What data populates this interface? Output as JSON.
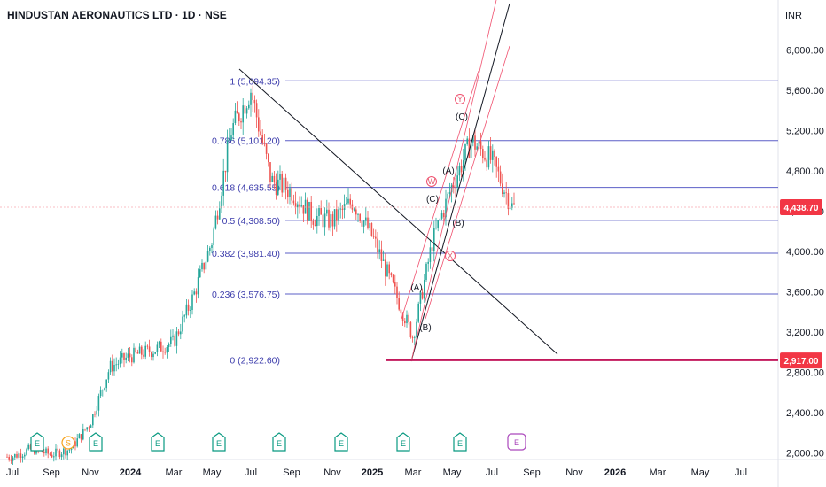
{
  "header": {
    "title": "HINDUSTAN AERONAUTICS LTD · 1D · NSE",
    "currency": "INR"
  },
  "chart_data": {
    "type": "candlestick",
    "y_ticks": [
      2000,
      2400,
      2800,
      3200,
      3600,
      4000,
      4400,
      4800,
      5200,
      5600,
      6000
    ],
    "y_tick_labels": [
      "2,000.00",
      "2,400.00",
      "2,800.00",
      "3,200.00",
      "3,600.00",
      "4,000.00",
      "4,400.00",
      "4,800.00",
      "5,200.00",
      "5,600.00",
      "6,000.00"
    ],
    "x_labels": [
      "Jul",
      "Sep",
      "Nov",
      "2024",
      "Mar",
      "May",
      "Jul",
      "Sep",
      "Nov",
      "2025",
      "Mar",
      "May",
      "Jul",
      "Sep",
      "Nov",
      "2026",
      "Mar",
      "May",
      "Jul"
    ],
    "x_label_bold": [
      "2024",
      "2025",
      "2026"
    ],
    "price_path": [
      [
        "2023-07",
        1960
      ],
      [
        "2023-08",
        2040
      ],
      [
        "2023-09",
        1980
      ],
      [
        "2023-10",
        2040
      ],
      [
        "2023-11",
        2300
      ],
      [
        "2023-12",
        2850
      ],
      [
        "2024-01",
        2960
      ],
      [
        "2024-02",
        3020
      ],
      [
        "2024-03",
        3100
      ],
      [
        "2024-04",
        3550
      ],
      [
        "2024-05",
        4100
      ],
      [
        "2024-06",
        5200
      ],
      [
        "2024-07",
        5600
      ],
      [
        "2024-08",
        4700
      ],
      [
        "2024-09",
        4600
      ],
      [
        "2024-10",
        4350
      ],
      [
        "2024-11",
        4300
      ],
      [
        "2024-12",
        4500
      ],
      [
        "2025-01",
        4150
      ],
      [
        "2025-02",
        3650
      ],
      [
        "2025-03",
        3150
      ],
      [
        "2025-04",
        4100
      ],
      [
        "2025-05",
        4650
      ],
      [
        "2025-06",
        5100
      ],
      [
        "2025-07",
        4900
      ],
      [
        "2025-08",
        4440
      ]
    ],
    "last_price_label": "4,438.70",
    "low_line_label": "2,917.00",
    "fib_levels": [
      {
        "label": "1 (5,694.35)",
        "value": 5694.35
      },
      {
        "label": "0.786 (5,101.20)",
        "value": 5101.2
      },
      {
        "label": "0.618 (4,635.55)",
        "value": 4635.55
      },
      {
        "label": "0.5 (4,308.50)",
        "value": 4308.5
      },
      {
        "label": "0.382 (3,981.40)",
        "value": 3981.4
      },
      {
        "label": "0.236 (3,576.75)",
        "value": 3576.75
      },
      {
        "label": "0 (2,922.60)",
        "value": 2922.6
      }
    ],
    "wave_labels": [
      "(A)",
      "(B)",
      "(C)",
      "(A)",
      "(B)",
      "(C)"
    ],
    "circled_labels": [
      "W",
      "X",
      "Y"
    ],
    "event_badges": [
      "E",
      "S",
      "E",
      "E",
      "E",
      "E",
      "E",
      "E",
      "E"
    ],
    "colors": {
      "up": "#26a69a",
      "down": "#ef5350",
      "fib": "#5b5fc7",
      "channel": "#f0506e",
      "trendline": "#131722",
      "last_price": "#f23645",
      "low_line": "#c2185b"
    }
  }
}
